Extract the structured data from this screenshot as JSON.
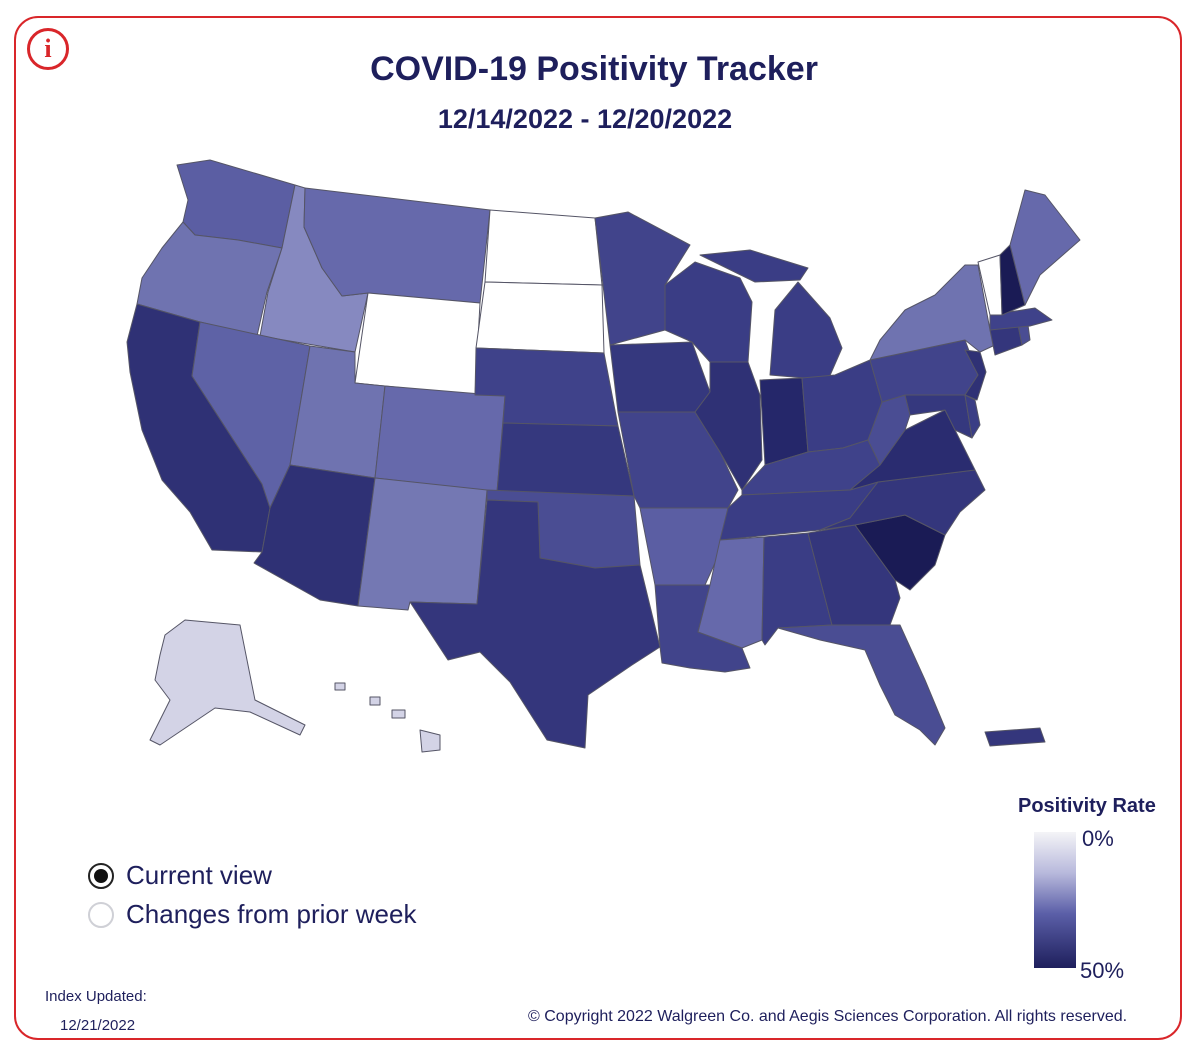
{
  "header": {
    "title": "COVID-19 Positivity Tracker",
    "date_range": "12/14/2022 - 12/20/2022",
    "info_icon": "info-icon"
  },
  "legend": {
    "title": "Positivity Rate",
    "min_label": "0%",
    "max_label": "50%",
    "color_min": "#f4f4f7",
    "color_max": "#1e1f5c"
  },
  "view_options": [
    {
      "label": "Current view",
      "selected": true
    },
    {
      "label": "Changes from prior week",
      "selected": false
    }
  ],
  "footer": {
    "index_label": "Index Updated:",
    "index_date": "12/21/2022",
    "copyright": "© Copyright 2022 Walgreen Co. and Aegis Sciences Corporation. All rights reserved."
  },
  "colors": {
    "frame": "#d9262a",
    "text": "#1e1f5c"
  },
  "states": [
    {
      "id": "WA",
      "fill": "#5b5ea3"
    },
    {
      "id": "OR",
      "fill": "#6f73b0"
    },
    {
      "id": "CA",
      "fill": "#2f3175"
    },
    {
      "id": "ID",
      "fill": "#8689c0"
    },
    {
      "id": "NV",
      "fill": "#5e62a6"
    },
    {
      "id": "MT",
      "fill": "#6669ab"
    },
    {
      "id": "WY",
      "fill": "#ffffff"
    },
    {
      "id": "UT",
      "fill": "#6f73b0"
    },
    {
      "id": "AZ",
      "fill": "#2f3175"
    },
    {
      "id": "CO",
      "fill": "#6669ab"
    },
    {
      "id": "NM",
      "fill": "#7478b3"
    },
    {
      "id": "ND",
      "fill": "#ffffff"
    },
    {
      "id": "SD",
      "fill": "#ffffff"
    },
    {
      "id": "NE",
      "fill": "#3f428a"
    },
    {
      "id": "KS",
      "fill": "#35387e"
    },
    {
      "id": "OK",
      "fill": "#4a4d93"
    },
    {
      "id": "TX",
      "fill": "#34367c"
    },
    {
      "id": "MN",
      "fill": "#41448b"
    },
    {
      "id": "IA",
      "fill": "#35387e"
    },
    {
      "id": "MO",
      "fill": "#41448b"
    },
    {
      "id": "AR",
      "fill": "#5b5ea3"
    },
    {
      "id": "LA",
      "fill": "#41448b"
    },
    {
      "id": "WI",
      "fill": "#3a3d85"
    },
    {
      "id": "IL",
      "fill": "#2f3175"
    },
    {
      "id": "MI",
      "fill": "#3a3d85"
    },
    {
      "id": "IN",
      "fill": "#25276a"
    },
    {
      "id": "OH",
      "fill": "#3a3d85"
    },
    {
      "id": "KY",
      "fill": "#3f428a"
    },
    {
      "id": "TN",
      "fill": "#3a3d85"
    },
    {
      "id": "MS",
      "fill": "#6669ab"
    },
    {
      "id": "AL",
      "fill": "#3a3d85"
    },
    {
      "id": "GA",
      "fill": "#34367c"
    },
    {
      "id": "FL",
      "fill": "#4a4d93"
    },
    {
      "id": "SC",
      "fill": "#1a1b55"
    },
    {
      "id": "NC",
      "fill": "#34367c"
    },
    {
      "id": "VA",
      "fill": "#2a2c70"
    },
    {
      "id": "WV",
      "fill": "#4a4d93"
    },
    {
      "id": "PA",
      "fill": "#41448b"
    },
    {
      "id": "NY",
      "fill": "#6f73b0"
    },
    {
      "id": "NJ",
      "fill": "#2f3175"
    },
    {
      "id": "DE",
      "fill": "#3a3d85"
    },
    {
      "id": "MD",
      "fill": "#35387e"
    },
    {
      "id": "CT",
      "fill": "#34367c"
    },
    {
      "id": "RI",
      "fill": "#4a4d93"
    },
    {
      "id": "MA",
      "fill": "#3f428a"
    },
    {
      "id": "VT",
      "fill": "#ffffff"
    },
    {
      "id": "NH",
      "fill": "#1a1b55"
    },
    {
      "id": "ME",
      "fill": "#6669ab"
    },
    {
      "id": "AK",
      "fill": "#d3d3e6"
    },
    {
      "id": "HI",
      "fill": "#d3d3e6"
    },
    {
      "id": "PR",
      "fill": "#34367c"
    }
  ]
}
